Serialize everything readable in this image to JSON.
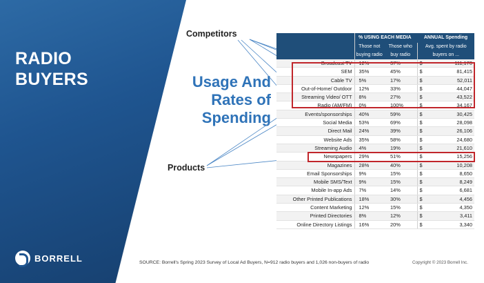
{
  "slide": {
    "title": "RADIO BUYERS",
    "logo_text": "BORRELL",
    "label_competitors": "Competitors",
    "label_products": "Products",
    "usage_title": "Usage And Rates of Spending",
    "source": "SOURCE: Borrell's Spring 2023 Survey of Local Ad Buyers, N=912 radio buyers and 1,026 non-buyers of radio",
    "copyright": "Copyright © 2023 Borrell Inc.",
    "colors": {
      "navy": "#1f4e79",
      "accent_blue": "#2f73b8",
      "highlight_red": "#c0252a"
    }
  },
  "table": {
    "group_header_usage": "% USING EACH MEDIA",
    "group_header_spend": "ANNUAL Spending",
    "col_not_buying_1": "Those not",
    "col_not_buying_2": "buying radio",
    "col_buy_radio_1": "Those who",
    "col_buy_radio_2": "buy radio",
    "col_spend_1": "Avg. spent by radio",
    "col_spend_2": "buyers on ...",
    "currency": "$",
    "rows": [
      {
        "name": "Broadcast TV",
        "not_buying": "12%",
        "buyers": "37%",
        "spend": "111,170"
      },
      {
        "name": "SEM",
        "not_buying": "35%",
        "buyers": "45%",
        "spend": "81,415"
      },
      {
        "name": "Cable TV",
        "not_buying": "5%",
        "buyers": "17%",
        "spend": "52,011"
      },
      {
        "name": "Out-of-Home/ Outdoor",
        "not_buying": "12%",
        "buyers": "33%",
        "spend": "44,047"
      },
      {
        "name": "Streaming Video/ OTT",
        "not_buying": "8%",
        "buyers": "27%",
        "spend": "43,522"
      },
      {
        "name": "Radio (AM/FM)",
        "not_buying": "0%",
        "buyers": "100%",
        "spend": "34,167"
      },
      {
        "name": "Events/sponsorships",
        "not_buying": "40%",
        "buyers": "59%",
        "spend": "30,425"
      },
      {
        "name": "Social Media",
        "not_buying": "53%",
        "buyers": "69%",
        "spend": "28,098"
      },
      {
        "name": "Direct Mail",
        "not_buying": "24%",
        "buyers": "39%",
        "spend": "26,106"
      },
      {
        "name": "Website Ads",
        "not_buying": "35%",
        "buyers": "58%",
        "spend": "24,680"
      },
      {
        "name": "Streaming Audio",
        "not_buying": "4%",
        "buyers": "19%",
        "spend": "21,610"
      },
      {
        "name": "Newspapers",
        "not_buying": "29%",
        "buyers": "51%",
        "spend": "15,256"
      },
      {
        "name": "Magazines",
        "not_buying": "28%",
        "buyers": "40%",
        "spend": "10,208"
      },
      {
        "name": "Email Sponsorships",
        "not_buying": "9%",
        "buyers": "15%",
        "spend": "8,650"
      },
      {
        "name": "Mobile SMS/Text",
        "not_buying": "9%",
        "buyers": "15%",
        "spend": "8,249"
      },
      {
        "name": "Mobile In-app Ads",
        "not_buying": "7%",
        "buyers": "14%",
        "spend": "6,681"
      },
      {
        "name": "Other Printed Publications",
        "not_buying": "18%",
        "buyers": "30%",
        "spend": "4,456"
      },
      {
        "name": "Content Marketing",
        "not_buying": "12%",
        "buyers": "15%",
        "spend": "4,350"
      },
      {
        "name": "Printed Directories",
        "not_buying": "8%",
        "buyers": "12%",
        "spend": "3,411"
      },
      {
        "name": "Online Directory Listings",
        "not_buying": "16%",
        "buyers": "20%",
        "spend": "3,340"
      }
    ]
  }
}
